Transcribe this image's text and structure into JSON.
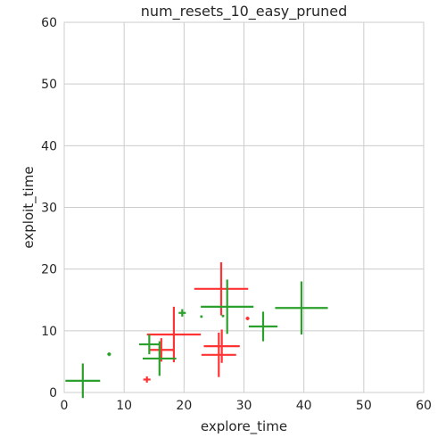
{
  "chart_data": {
    "type": "scatter",
    "title": "num_resets_10_easy_pruned",
    "xlabel": "explore_time",
    "ylabel": "exploit_time",
    "xlim": [
      0,
      60
    ],
    "ylim": [
      0,
      60
    ],
    "xticks": [
      0,
      10,
      20,
      30,
      40,
      50,
      60
    ],
    "yticks": [
      0,
      10,
      20,
      30,
      40,
      50,
      60
    ],
    "grid": true,
    "error_bars": true,
    "series": [
      {
        "color": "#ff3333",
        "points": [
          {
            "x": 13.8,
            "y": 2.1,
            "xerr": 0.6,
            "yerr": 0.5
          },
          {
            "x": 16.2,
            "y": 6.9,
            "xerr": 2.0,
            "yerr": 1.9
          },
          {
            "x": 18.3,
            "y": 9.4,
            "xerr": 4.5,
            "yerr": 4.5
          },
          {
            "x": 25.8,
            "y": 6.1,
            "xerr": 2.9,
            "yerr": 3.6
          },
          {
            "x": 26.3,
            "y": 7.5,
            "xerr": 3.0,
            "yerr": 2.7
          },
          {
            "x": 26.2,
            "y": 16.8,
            "xerr": 4.5,
            "yerr": 4.3
          },
          {
            "x": 30.6,
            "y": 12.0,
            "xerr": 0.3,
            "yerr": 0.3
          }
        ]
      },
      {
        "color": "#2ca02c",
        "points": [
          {
            "x": 3.1,
            "y": 1.9,
            "xerr": 2.9,
            "yerr": 2.8
          },
          {
            "x": 7.5,
            "y": 6.2,
            "xerr": 0.3,
            "yerr": 0.3
          },
          {
            "x": 14.2,
            "y": 7.8,
            "xerr": 1.7,
            "yerr": 1.6
          },
          {
            "x": 15.9,
            "y": 5.5,
            "xerr": 2.8,
            "yerr": 2.8
          },
          {
            "x": 19.7,
            "y": 12.9,
            "xerr": 0.6,
            "yerr": 0.6
          },
          {
            "x": 22.9,
            "y": 12.3,
            "xerr": 0.2,
            "yerr": 0.2
          },
          {
            "x": 26.5,
            "y": 12.4,
            "xerr": 0.2,
            "yerr": 0.2
          },
          {
            "x": 27.2,
            "y": 13.9,
            "xerr": 4.4,
            "yerr": 4.4
          },
          {
            "x": 33.2,
            "y": 10.7,
            "xerr": 2.4,
            "yerr": 2.4
          },
          {
            "x": 39.6,
            "y": 13.7,
            "xerr": 4.4,
            "yerr": 4.3
          }
        ]
      }
    ]
  }
}
